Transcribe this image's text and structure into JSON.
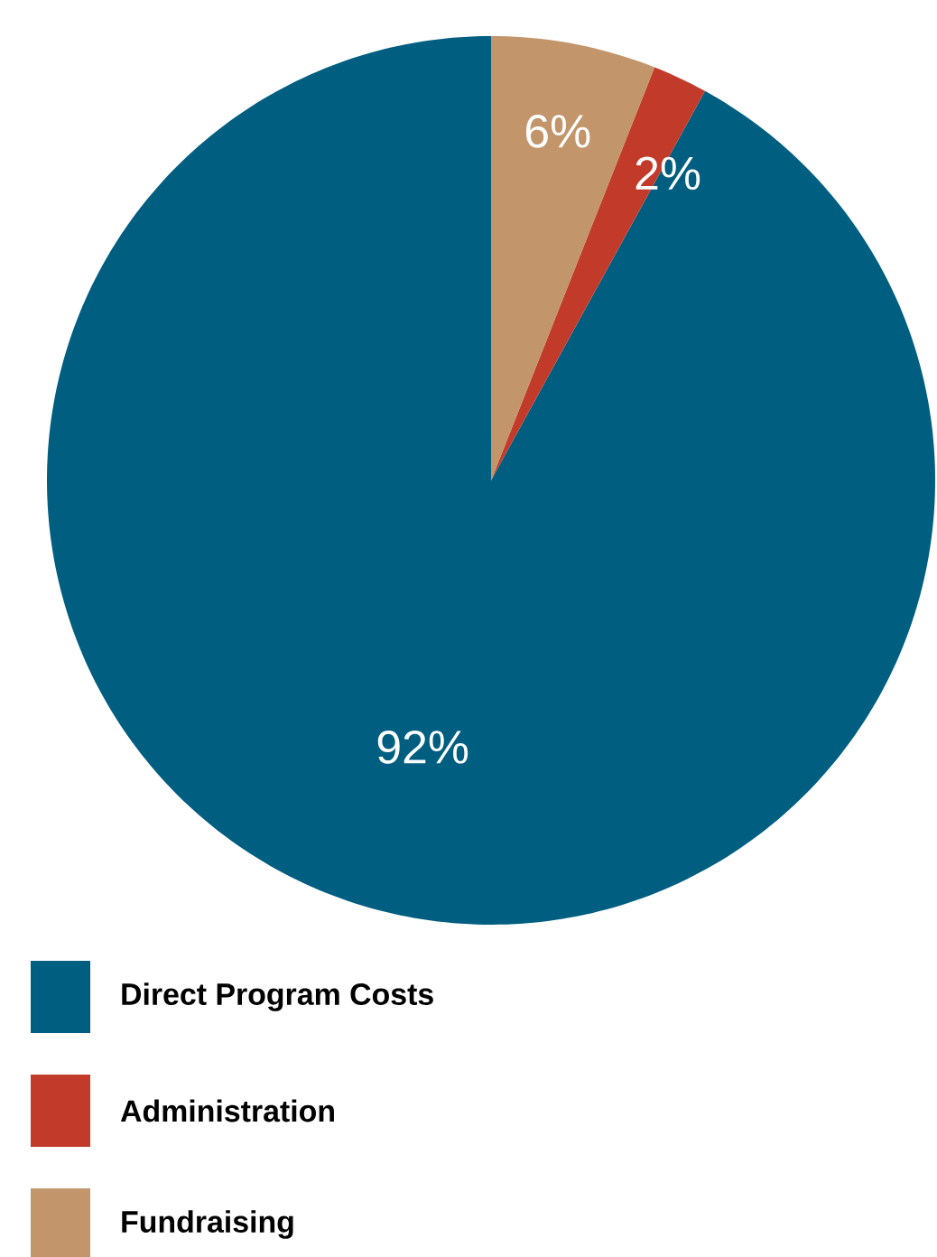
{
  "chart_data": {
    "type": "pie",
    "categories": [
      "Direct Program Costs",
      "Administration",
      "Fundraising"
    ],
    "values": [
      92,
      2,
      6
    ],
    "value_labels": [
      "92%",
      "2%",
      "6%"
    ],
    "colors": [
      "#005e80",
      "#c23b2a",
      "#c2956b"
    ],
    "legend": "bottom"
  }
}
